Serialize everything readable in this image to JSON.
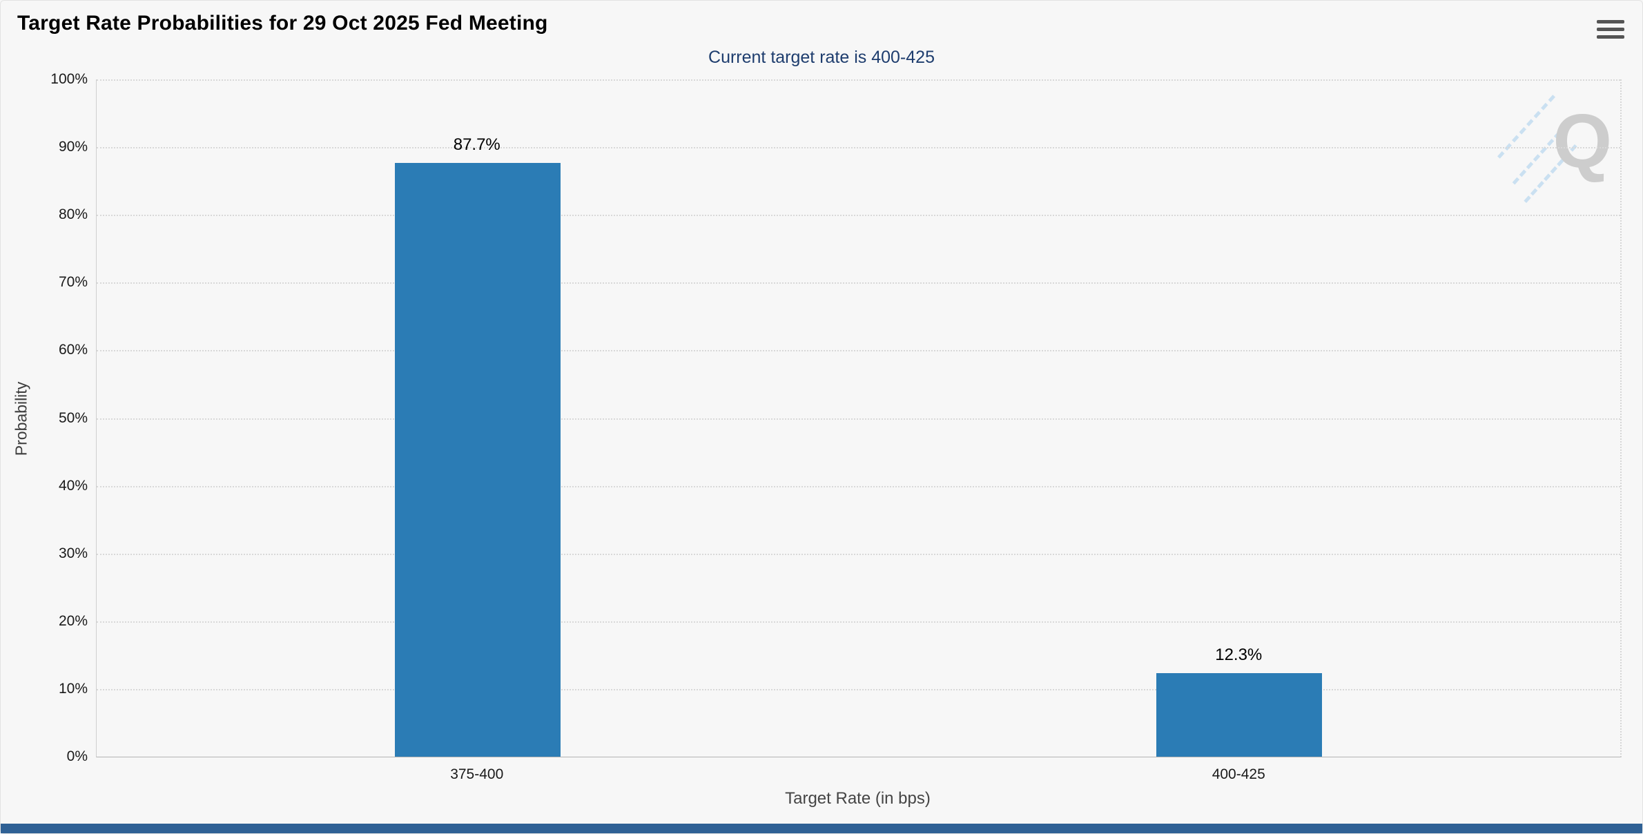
{
  "header": {
    "title": "Target Rate Probabilities for 29 Oct 2025 Fed Meeting",
    "menu_tooltip": "Chart context menu"
  },
  "chart_data": {
    "type": "bar",
    "title": "Target Rate Probabilities for 29 Oct 2025 Fed Meeting",
    "subtitle": "Current target rate is 400-425",
    "categories": [
      "375-400",
      "400-425"
    ],
    "values": [
      87.7,
      12.3
    ],
    "value_labels": [
      "87.7%",
      "12.3%"
    ],
    "xlabel": "Target Rate (in bps)",
    "ylabel": "Probability",
    "ylim": [
      0,
      100
    ],
    "ytick_step": 10,
    "ytick_labels": [
      "0%",
      "10%",
      "20%",
      "30%",
      "40%",
      "50%",
      "60%",
      "70%",
      "80%",
      "90%",
      "100%"
    ],
    "grid": "horizontal-dotted",
    "legend": "none",
    "bar_color": "#2b7cb5",
    "watermark": "Q"
  },
  "colors": {
    "background": "#f7f7f7",
    "subtitle_text": "#1e3d6e",
    "bar": "#2b7cb5",
    "gridline": "#d8d8d8",
    "bottom_strip": "#2f6195",
    "watermark_gray": "#cdcdcd",
    "watermark_blue": "#c3dcf0"
  }
}
